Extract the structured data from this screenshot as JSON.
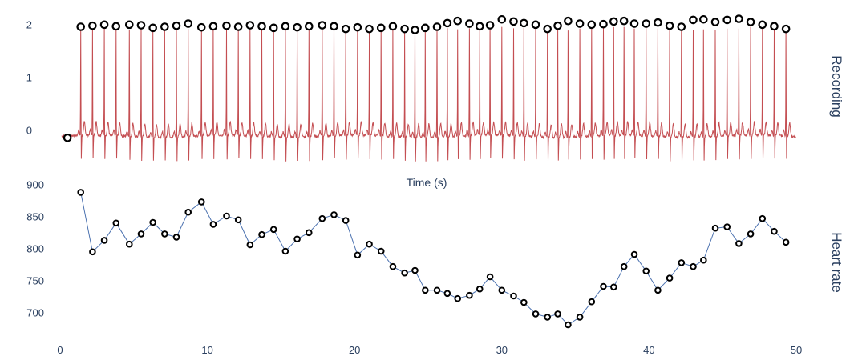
{
  "chart_data": [
    {
      "type": "line",
      "panel": "top",
      "side_title": "Recording",
      "xlabel": "Time (s)",
      "xlim": [
        0,
        50
      ],
      "ylim": [
        -0.55,
        2.25
      ],
      "yticks": [
        "0",
        "1",
        "2"
      ],
      "ytick_values": [
        0,
        1,
        2
      ],
      "grid": false,
      "series": [
        {
          "kind": "ecg-trace",
          "color": "#c44e52",
          "baseline": -0.1,
          "x_start": 0.1,
          "x_end": 50
        },
        {
          "kind": "markers",
          "marker": "open-circle",
          "color": "#000000",
          "x": [
            0.5,
            1.4,
            2.2,
            3.0,
            3.8,
            4.7,
            5.5,
            6.3,
            7.1,
            7.9,
            8.7,
            9.6,
            10.4,
            11.3,
            12.1,
            12.9,
            13.7,
            14.5,
            15.3,
            16.1,
            16.9,
            17.8,
            18.6,
            19.4,
            20.2,
            21.0,
            21.8,
            22.6,
            23.4,
            24.1,
            24.8,
            25.6,
            26.3,
            27.0,
            27.8,
            28.5,
            29.2,
            30.0,
            30.8,
            31.5,
            32.3,
            33.1,
            33.8,
            34.5,
            35.3,
            36.1,
            36.9,
            37.6,
            38.3,
            39.0,
            39.8,
            40.6,
            41.4,
            42.2,
            43.0,
            43.7,
            44.5,
            45.3,
            46.1,
            46.9,
            47.7,
            48.5,
            49.3
          ],
          "y": [
            -0.13,
            1.97,
            1.99,
            2.01,
            1.98,
            2.01,
            2.0,
            1.95,
            1.97,
            1.99,
            2.03,
            1.96,
            1.98,
            1.99,
            1.97,
            2.0,
            1.98,
            1.95,
            1.98,
            1.96,
            1.98,
            2.0,
            1.98,
            1.93,
            1.96,
            1.93,
            1.95,
            1.98,
            1.93,
            1.91,
            1.95,
            1.97,
            2.04,
            2.08,
            2.03,
            1.98,
            2.0,
            2.11,
            2.07,
            2.04,
            2.01,
            1.93,
            1.99,
            2.08,
            2.03,
            2.01,
            2.02,
            2.07,
            2.08,
            2.03,
            2.03,
            2.05,
            1.99,
            1.97,
            2.1,
            2.11,
            2.06,
            2.1,
            2.12,
            2.06,
            2.01,
            1.98,
            1.93
          ]
        }
      ]
    },
    {
      "type": "line",
      "panel": "bottom",
      "side_title": "Heart rate",
      "xlim": [
        0,
        50
      ],
      "ylim": [
        662,
        912
      ],
      "yticks": [
        "700",
        "750",
        "800",
        "850",
        "900"
      ],
      "ytick_values": [
        700,
        750,
        800,
        850,
        900
      ],
      "xticks": [
        "0",
        "10",
        "20",
        "30",
        "40",
        "50"
      ],
      "xtick_values": [
        0,
        10,
        20,
        30,
        40,
        50
      ],
      "grid": false,
      "series": [
        {
          "kind": "line-markers",
          "line_color": "#4c72b0",
          "marker": "open-circle",
          "marker_color": "#000000",
          "x": [
            1.4,
            2.2,
            3.0,
            3.8,
            4.7,
            5.5,
            6.3,
            7.1,
            7.9,
            8.7,
            9.6,
            10.4,
            11.3,
            12.1,
            12.9,
            13.7,
            14.5,
            15.3,
            16.1,
            16.9,
            17.8,
            18.6,
            19.4,
            20.2,
            21.0,
            21.8,
            22.6,
            23.4,
            24.1,
            24.8,
            25.6,
            26.3,
            27.0,
            27.8,
            28.5,
            29.2,
            30.0,
            30.8,
            31.5,
            32.3,
            33.1,
            33.8,
            34.5,
            35.3,
            36.1,
            36.9,
            37.6,
            38.3,
            39.0,
            39.8,
            40.6,
            41.4,
            42.2,
            43.0,
            43.7,
            44.5,
            45.3,
            46.1,
            46.9,
            47.7,
            48.5,
            49.3
          ],
          "y": [
            889,
            796,
            814,
            841,
            808,
            824,
            842,
            824,
            819,
            858,
            874,
            839,
            852,
            846,
            807,
            823,
            831,
            797,
            816,
            826,
            848,
            854,
            845,
            791,
            808,
            797,
            773,
            763,
            767,
            736,
            736,
            731,
            723,
            728,
            738,
            757,
            736,
            727,
            717,
            699,
            694,
            699,
            682,
            694,
            718,
            742,
            741,
            773,
            792,
            766,
            736,
            755,
            779,
            773,
            783,
            833,
            835,
            809,
            824,
            848,
            828,
            811
          ]
        }
      ]
    }
  ]
}
